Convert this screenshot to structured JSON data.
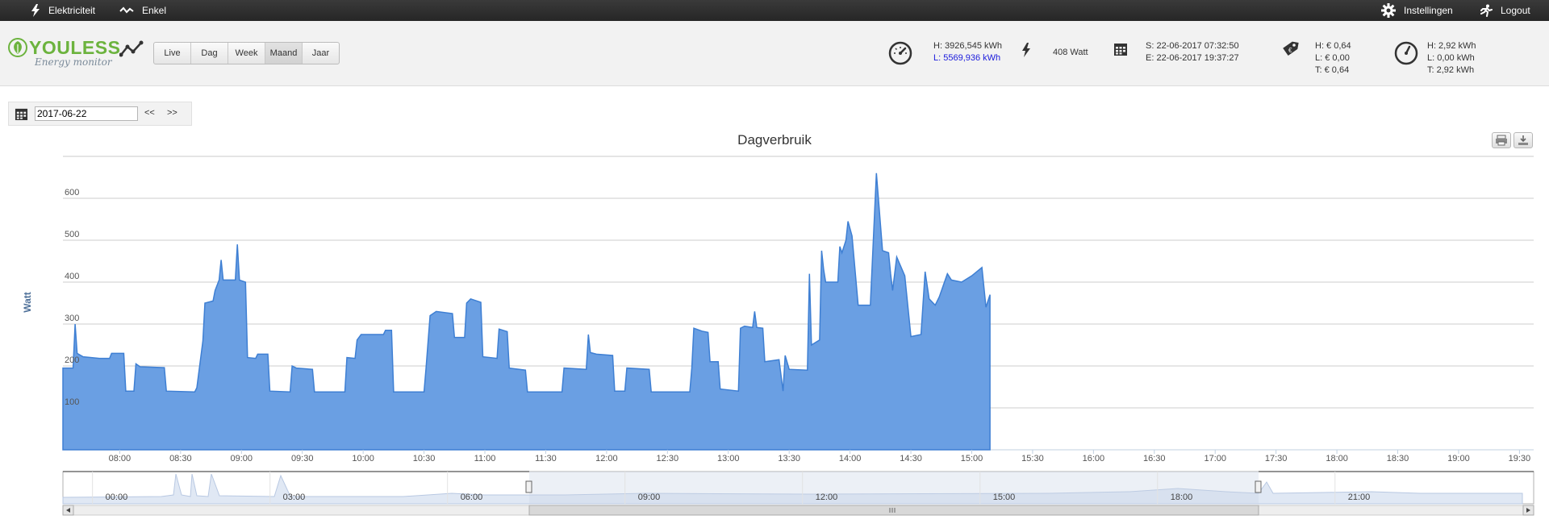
{
  "topbar": {
    "left_items": [
      {
        "label": "Elektriciteit",
        "icon": "lightning-icon"
      },
      {
        "label": "Enkel",
        "icon": "wave-icon"
      }
    ],
    "settings_label": "Instellingen",
    "logout_label": "Logout"
  },
  "logo": {
    "brand": "YOULESS",
    "sub": "Energy monitor"
  },
  "tabs": [
    {
      "label": "Live"
    },
    {
      "label": "Dag"
    },
    {
      "label": "Week"
    },
    {
      "label": "Maand",
      "active": true
    },
    {
      "label": "Jaar"
    }
  ],
  "meter": {
    "h": "H: 3926,545 kWh",
    "l": "L: 5569,936 kWh"
  },
  "power": {
    "value": "408 Watt"
  },
  "period": {
    "s": "S: 22-06-2017 07:32:50",
    "e": "E: 22-06-2017 19:37:27"
  },
  "cost": {
    "h": "H: € 0,64",
    "l": "L: € 0,00",
    "t": "T: € 0,64"
  },
  "usage": {
    "h": "H: 2,92 kWh",
    "l": "L: 0,00 kWh",
    "t": "T: 2,92 kWh"
  },
  "datepicker": {
    "value": "2017-06-22",
    "prev": "<<",
    "next": ">>"
  },
  "chart_data": {
    "type": "area",
    "title": "Dagverbruik",
    "ylabel": "Watt",
    "ylim": [
      0,
      700
    ],
    "yticks": [
      100,
      200,
      300,
      400,
      500,
      600
    ],
    "xlim": [
      "07:32",
      "19:37"
    ],
    "x_tick_labels": [
      "08:00",
      "08:30",
      "09:00",
      "09:30",
      "10:00",
      "10:30",
      "11:00",
      "11:30",
      "12:00",
      "12:30",
      "13:00",
      "13:30",
      "14:00",
      "14:30",
      "15:00",
      "15:30",
      "16:00",
      "16:30",
      "17:00",
      "17:30",
      "18:00",
      "18:30",
      "19:00",
      "19:30"
    ],
    "color": "#6a9fe3",
    "line_color": "#3e7fd3",
    "series": [
      {
        "points": [
          [
            "07:32",
            195
          ],
          [
            "07:37",
            195
          ],
          [
            "07:38",
            300
          ],
          [
            "07:39",
            230
          ],
          [
            "07:42",
            222
          ],
          [
            "07:50",
            218
          ],
          [
            "07:55",
            218
          ],
          [
            "07:56",
            230
          ],
          [
            "08:02",
            230
          ],
          [
            "08:03",
            140
          ],
          [
            "08:07",
            140
          ],
          [
            "08:08",
            205
          ],
          [
            "08:10",
            198
          ],
          [
            "08:22",
            196
          ],
          [
            "08:23",
            140
          ],
          [
            "08:37",
            138
          ],
          [
            "08:38",
            148
          ],
          [
            "08:41",
            260
          ],
          [
            "08:42",
            350
          ],
          [
            "08:46",
            355
          ],
          [
            "08:47",
            380
          ],
          [
            "08:49",
            405
          ],
          [
            "08:50",
            453
          ],
          [
            "08:51",
            405
          ],
          [
            "08:57",
            405
          ],
          [
            "08:58",
            490
          ],
          [
            "08:59",
            405
          ],
          [
            "09:02",
            400
          ],
          [
            "09:03",
            220
          ],
          [
            "09:07",
            218
          ],
          [
            "09:08",
            228
          ],
          [
            "09:13",
            228
          ],
          [
            "09:14",
            140
          ],
          [
            "09:24",
            138
          ],
          [
            "09:25",
            200
          ],
          [
            "09:27",
            195
          ],
          [
            "09:35",
            192
          ],
          [
            "09:36",
            138
          ],
          [
            "09:51",
            138
          ],
          [
            "09:52",
            220
          ],
          [
            "09:56",
            218
          ],
          [
            "09:57",
            262
          ],
          [
            "09:59",
            275
          ],
          [
            "10:10",
            275
          ],
          [
            "10:11",
            285
          ],
          [
            "10:14",
            285
          ],
          [
            "10:15",
            138
          ],
          [
            "10:30",
            138
          ],
          [
            "10:31",
            195
          ],
          [
            "10:33",
            320
          ],
          [
            "10:36",
            330
          ],
          [
            "10:44",
            325
          ],
          [
            "10:45",
            268
          ],
          [
            "10:50",
            268
          ],
          [
            "10:51",
            350
          ],
          [
            "10:53",
            360
          ],
          [
            "10:58",
            352
          ],
          [
            "10:59",
            222
          ],
          [
            "11:06",
            218
          ],
          [
            "11:07",
            288
          ],
          [
            "11:11",
            282
          ],
          [
            "11:12",
            195
          ],
          [
            "11:20",
            190
          ],
          [
            "11:21",
            138
          ],
          [
            "11:38",
            138
          ],
          [
            "11:39",
            195
          ],
          [
            "11:50",
            192
          ],
          [
            "11:51",
            275
          ],
          [
            "11:52",
            232
          ],
          [
            "11:55",
            228
          ],
          [
            "12:03",
            225
          ],
          [
            "12:04",
            140
          ],
          [
            "12:09",
            140
          ],
          [
            "12:10",
            195
          ],
          [
            "12:21",
            192
          ],
          [
            "12:22",
            138
          ],
          [
            "12:41",
            138
          ],
          [
            "12:42",
            195
          ],
          [
            "12:43",
            290
          ],
          [
            "12:47",
            283
          ],
          [
            "12:50",
            280
          ],
          [
            "12:51",
            210
          ],
          [
            "12:55",
            210
          ],
          [
            "12:56",
            145
          ],
          [
            "13:05",
            140
          ],
          [
            "13:06",
            290
          ],
          [
            "13:08",
            295
          ],
          [
            "13:12",
            292
          ],
          [
            "13:13",
            330
          ],
          [
            "13:14",
            292
          ],
          [
            "13:17",
            290
          ],
          [
            "13:18",
            210
          ],
          [
            "13:25",
            215
          ],
          [
            "13:27",
            140
          ],
          [
            "13:28",
            225
          ],
          [
            "13:30",
            192
          ],
          [
            "13:39",
            190
          ],
          [
            "13:40",
            420
          ],
          [
            "13:41",
            250
          ],
          [
            "13:45",
            262
          ],
          [
            "13:46",
            475
          ],
          [
            "13:47",
            430
          ],
          [
            "13:48",
            400
          ],
          [
            "13:54",
            400
          ],
          [
            "13:55",
            485
          ],
          [
            "13:56",
            470
          ],
          [
            "13:58",
            500
          ],
          [
            "13:59",
            545
          ],
          [
            "14:01",
            510
          ],
          [
            "14:04",
            345
          ],
          [
            "14:10",
            345
          ],
          [
            "14:13",
            660
          ],
          [
            "14:16",
            475
          ],
          [
            "14:19",
            470
          ],
          [
            "14:20",
            420
          ],
          [
            "14:21",
            380
          ],
          [
            "14:23",
            460
          ],
          [
            "14:27",
            415
          ],
          [
            "14:30",
            270
          ],
          [
            "14:35",
            275
          ],
          [
            "14:37",
            425
          ],
          [
            "14:39",
            360
          ],
          [
            "14:42",
            345
          ],
          [
            "14:44",
            365
          ],
          [
            "14:48",
            420
          ],
          [
            "14:50",
            405
          ],
          [
            "14:55",
            400
          ],
          [
            "15:00",
            415
          ],
          [
            "15:05",
            435
          ],
          [
            "15:07",
            340
          ],
          [
            "15:09",
            370
          ]
        ]
      }
    ]
  },
  "navigator": {
    "x_tick_labels": [
      "00:00",
      "03:00",
      "06:00",
      "09:00",
      "12:00",
      "15:00",
      "18:00",
      "21:00"
    ]
  }
}
